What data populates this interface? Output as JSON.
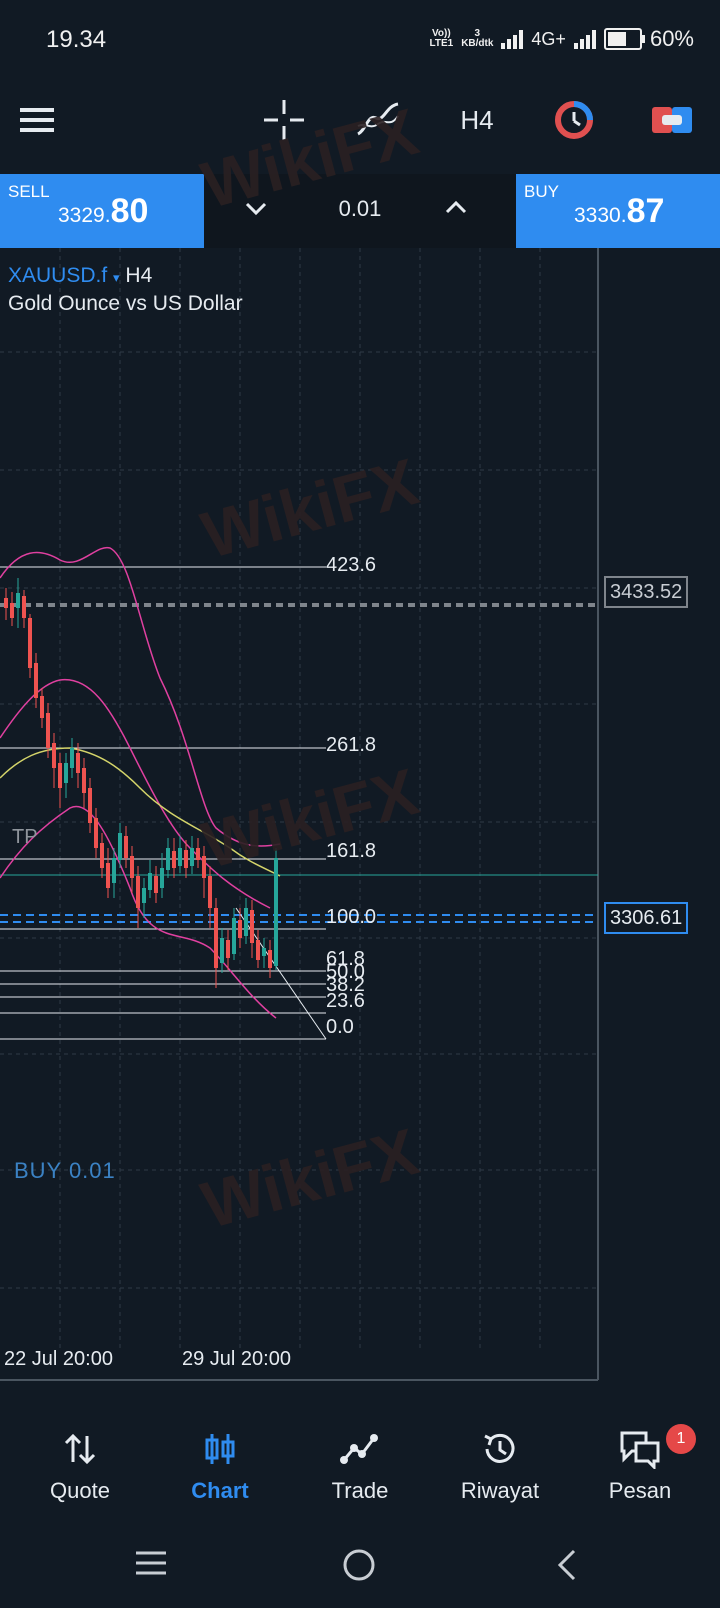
{
  "status_bar": {
    "time": "19.34",
    "volte_top": "Vo))",
    "volte_bottom": "LTE1",
    "speed_top": "3",
    "speed_bottom": "KB/dtk",
    "network": "4G+",
    "battery_percent": "60%",
    "battery_level": 0.6
  },
  "toolbar": {
    "timeframe": "H4",
    "icons": [
      "menu-icon",
      "crosshair-icon",
      "indicators-icon",
      "timeframe",
      "one-click-trading-icon",
      "toggle-icon"
    ]
  },
  "trade_bar": {
    "sell_label": "SELL",
    "sell_price_small": "3329.",
    "sell_price_big": "80",
    "lot": "0.01",
    "buy_label": "BUY",
    "buy_price_small": "3330.",
    "buy_price_big": "87"
  },
  "chart": {
    "symbol": "XAUUSD.f",
    "caret": "▾",
    "timeframe": "H4",
    "description": "Gold Ounce vs US Dollar",
    "tp_label": "TP",
    "tp_price": "3433.52",
    "buy_order_label": "BUY 0.01",
    "buy_price": "3306.61",
    "dates": [
      "22 Jul 20:00",
      "29 Jul 20:00"
    ],
    "fib_levels": [
      "423.6",
      "261.8",
      "161.8",
      "100.0",
      "61.8",
      "50.0",
      "38.2",
      "23.6",
      "0.0"
    ]
  },
  "colors": {
    "accent": "#2f8cf0",
    "background": "#111a24",
    "bull": "#26a69a",
    "bear": "#ef5350",
    "bollinger": "#e040a0",
    "ma": "#d4d46a"
  },
  "bottom_nav": {
    "items": [
      {
        "label": "Quote",
        "icon": "quote-icon"
      },
      {
        "label": "Chart",
        "icon": "chart-icon"
      },
      {
        "label": "Trade",
        "icon": "trade-icon"
      },
      {
        "label": "Riwayat",
        "icon": "history-icon"
      },
      {
        "label": "Pesan",
        "icon": "messages-icon"
      }
    ],
    "active": "Chart",
    "messages_badge": "1"
  },
  "watermark": "WikiFX"
}
